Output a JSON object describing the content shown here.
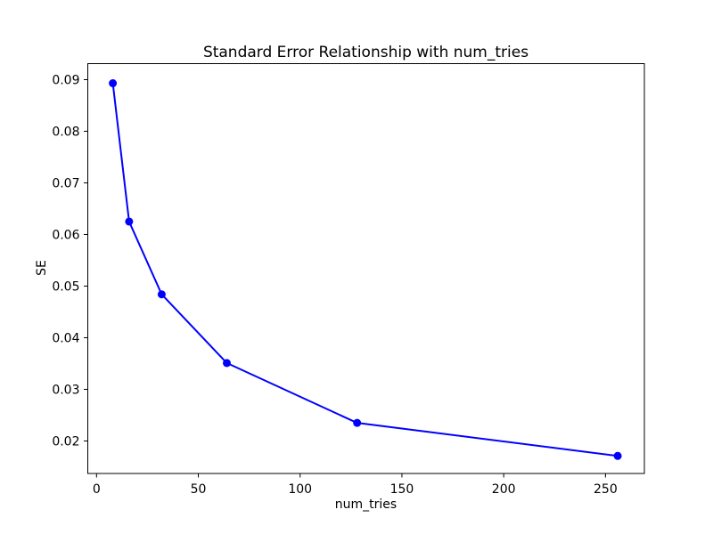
{
  "chart": {
    "title": "Standard Error Relationship with num_tries",
    "xlabel": "num_tries",
    "ylabel": "SE"
  },
  "chart_data": {
    "type": "line",
    "title": "Standard Error Relationship with num_tries",
    "xlabel": "num_tries",
    "ylabel": "SE",
    "x": [
      8,
      16,
      32,
      64,
      128,
      256
    ],
    "series": [
      {
        "name": "SE",
        "color": "#0000ff",
        "marker": "o",
        "values": [
          0.0893,
          0.0625,
          0.0484,
          0.0351,
          0.0235,
          0.0171
        ]
      }
    ],
    "xticks": [
      0,
      50,
      100,
      150,
      200,
      250
    ],
    "xtick_labels": [
      "0",
      "50",
      "100",
      "150",
      "200",
      "250"
    ],
    "yticks": [
      0.02,
      0.03,
      0.04,
      0.05,
      0.06,
      0.07,
      0.08,
      0.09
    ],
    "ytick_labels": [
      "0.02",
      "0.03",
      "0.04",
      "0.05",
      "0.06",
      "0.07",
      "0.08",
      "0.09"
    ],
    "xlim": [
      -4.3,
      269.1
    ],
    "ylim": [
      0.0137,
      0.0931
    ],
    "grid": false,
    "legend_position": "none",
    "background": "#ffffff",
    "spine_color": "#000000",
    "text_color": "#000000"
  }
}
